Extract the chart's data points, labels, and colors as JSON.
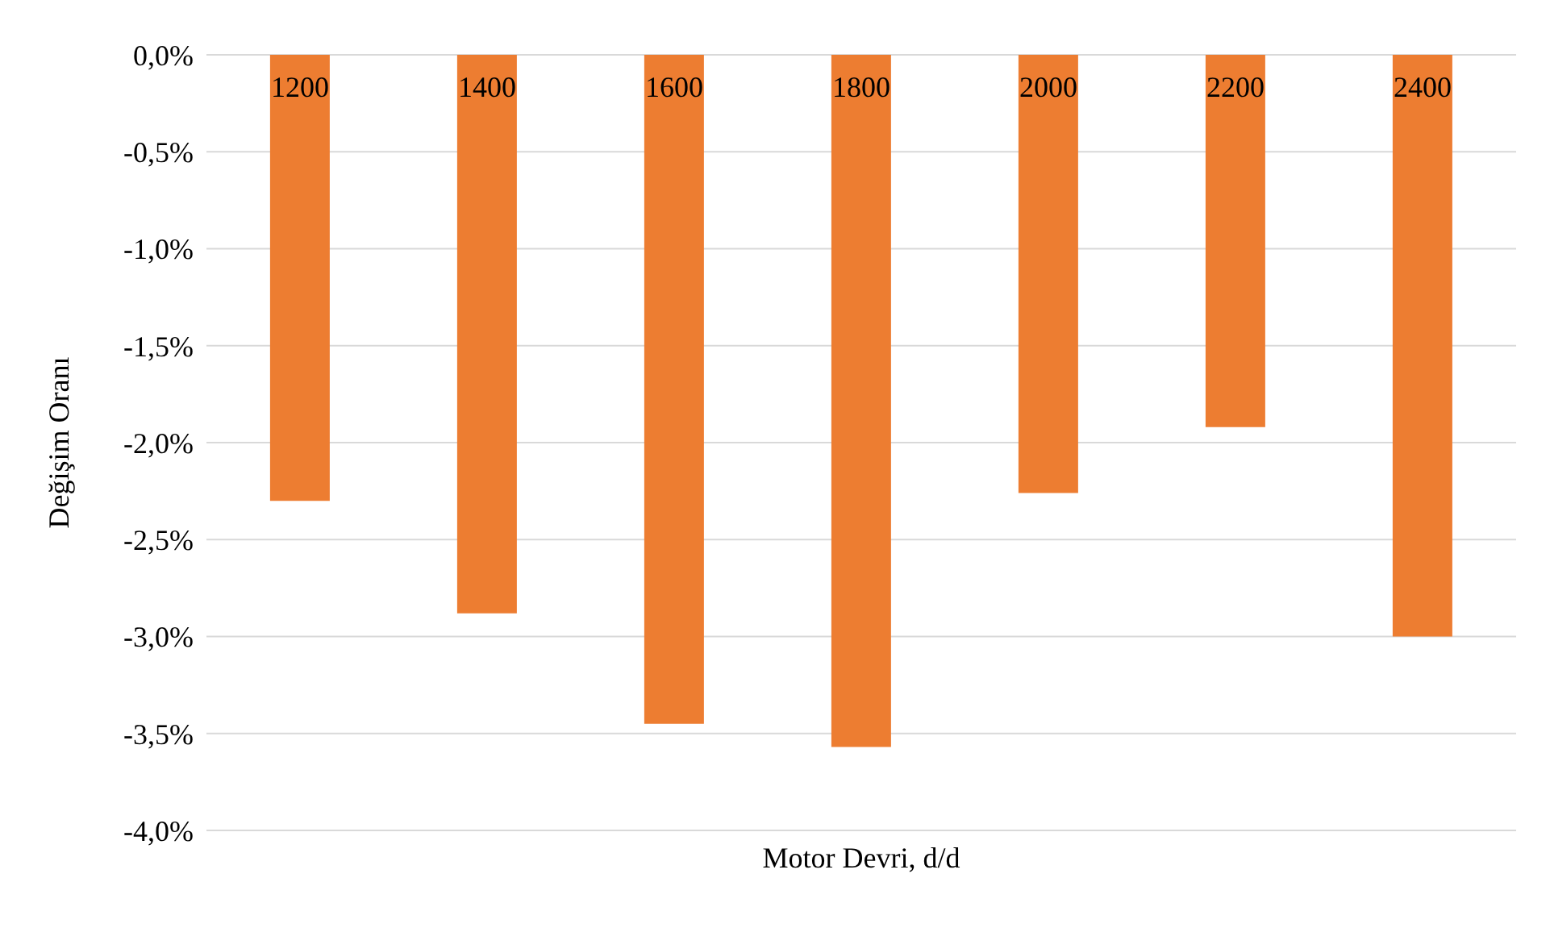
{
  "chart_data": {
    "type": "bar",
    "xlabel": "Motor Devri, d/d",
    "ylabel": "Değişim Oranı",
    "categories": [
      "1200",
      "1400",
      "1600",
      "1800",
      "2000",
      "2200",
      "2400"
    ],
    "values": [
      -2.3,
      -2.88,
      -3.45,
      -3.57,
      -2.26,
      -1.92,
      -3.0
    ],
    "color": "#ed7d31",
    "ylim": [
      -4,
      0
    ],
    "yticks": [
      {
        "value": 0,
        "label": "0,0%"
      },
      {
        "value": -0.5,
        "label": "-0,5%"
      },
      {
        "value": -1,
        "label": "-1,0%"
      },
      {
        "value": -1.5,
        "label": "-1,5%"
      },
      {
        "value": -2,
        "label": "-2,0%"
      },
      {
        "value": -2.5,
        "label": "-2,5%"
      },
      {
        "value": -3,
        "label": "-3,0%"
      },
      {
        "value": -3.5,
        "label": "-3,5%"
      },
      {
        "value": -4,
        "label": "-4,0%"
      }
    ],
    "grid": "y"
  }
}
